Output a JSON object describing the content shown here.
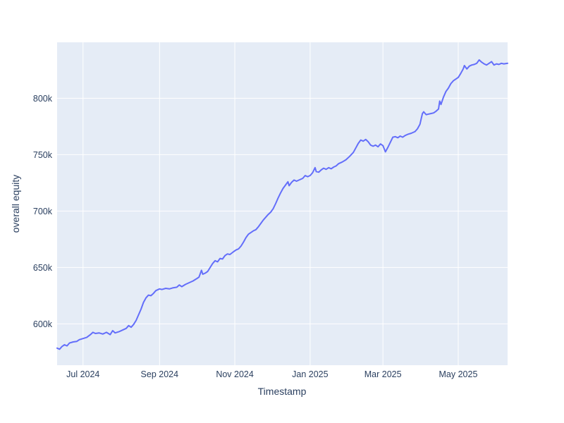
{
  "figure": {
    "background": "#ffffff"
  },
  "chart_data": {
    "type": "line",
    "title": "",
    "xlabel": "Timestamp",
    "ylabel": "overall equity",
    "units": "thousands (k)",
    "legend": "none",
    "grid": true,
    "colors": {
      "line": "#636efa",
      "plot_background": "#e5ecf6",
      "gridline": "#ffffff",
      "text": "#2a3f5f"
    },
    "x_range": [
      "2024-06-10",
      "2025-06-10"
    ],
    "y_range_k": [
      563.4,
      849.6
    ],
    "x_ticks": [
      {
        "label": "Jul 2024",
        "date": "2024-07-01"
      },
      {
        "label": "Sep 2024",
        "date": "2024-09-01"
      },
      {
        "label": "Nov 2024",
        "date": "2024-11-01"
      },
      {
        "label": "Jan 2025",
        "date": "2025-01-01"
      },
      {
        "label": "Mar 2025",
        "date": "2025-03-01"
      },
      {
        "label": "May 2025",
        "date": "2025-05-01"
      }
    ],
    "y_ticks": [
      {
        "label": "600k",
        "value_k": 600
      },
      {
        "label": "650k",
        "value_k": 650
      },
      {
        "label": "700k",
        "value_k": 700
      },
      {
        "label": "750k",
        "value_k": 750
      },
      {
        "label": "800k",
        "value_k": 800
      }
    ],
    "series": [
      {
        "name": "overall equity",
        "x": [
          "2024-06-10",
          "2024-06-12",
          "2024-06-14",
          "2024-06-16",
          "2024-06-18",
          "2024-06-20",
          "2024-06-23",
          "2024-06-26",
          "2024-06-28",
          "2024-07-01",
          "2024-07-04",
          "2024-07-07",
          "2024-07-09",
          "2024-07-11",
          "2024-07-14",
          "2024-07-17",
          "2024-07-20",
          "2024-07-23",
          "2024-07-25",
          "2024-07-27",
          "2024-07-30",
          "2024-08-02",
          "2024-08-05",
          "2024-08-07",
          "2024-08-09",
          "2024-08-11",
          "2024-08-13",
          "2024-08-15",
          "2024-08-17",
          "2024-08-19",
          "2024-08-21",
          "2024-08-23",
          "2024-08-25",
          "2024-08-27",
          "2024-08-29",
          "2024-09-01",
          "2024-09-03",
          "2024-09-06",
          "2024-09-09",
          "2024-09-12",
          "2024-09-15",
          "2024-09-17",
          "2024-09-19",
          "2024-09-22",
          "2024-09-25",
          "2024-09-28",
          "2024-10-01",
          "2024-10-03",
          "2024-10-05",
          "2024-10-06",
          "2024-10-08",
          "2024-10-10",
          "2024-10-12",
          "2024-10-14",
          "2024-10-16",
          "2024-10-18",
          "2024-10-20",
          "2024-10-22",
          "2024-10-24",
          "2024-10-26",
          "2024-10-28",
          "2024-10-31",
          "2024-11-02",
          "2024-11-04",
          "2024-11-06",
          "2024-11-08",
          "2024-11-10",
          "2024-11-12",
          "2024-11-14",
          "2024-11-16",
          "2024-11-18",
          "2024-11-20",
          "2024-11-22",
          "2024-11-24",
          "2024-11-26",
          "2024-11-28",
          "2024-11-30",
          "2024-12-02",
          "2024-12-04",
          "2024-12-06",
          "2024-12-08",
          "2024-12-10",
          "2024-12-12",
          "2024-12-14",
          "2024-12-15",
          "2024-12-17",
          "2024-12-19",
          "2024-12-21",
          "2024-12-23",
          "2024-12-26",
          "2024-12-28",
          "2024-12-30",
          "2025-01-01",
          "2025-01-03",
          "2025-01-05",
          "2025-01-06",
          "2025-01-08",
          "2025-01-10",
          "2025-01-12",
          "2025-01-14",
          "2025-01-16",
          "2025-01-18",
          "2025-01-20",
          "2025-01-22",
          "2025-01-24",
          "2025-01-27",
          "2025-01-30",
          "2025-02-02",
          "2025-02-05",
          "2025-02-07",
          "2025-02-09",
          "2025-02-11",
          "2025-02-13",
          "2025-02-15",
          "2025-02-17",
          "2025-02-19",
          "2025-02-21",
          "2025-02-23",
          "2025-02-25",
          "2025-02-27",
          "2025-03-01",
          "2025-03-03",
          "2025-03-05",
          "2025-03-07",
          "2025-03-09",
          "2025-03-11",
          "2025-03-13",
          "2025-03-15",
          "2025-03-17",
          "2025-03-19",
          "2025-03-21",
          "2025-03-24",
          "2025-03-27",
          "2025-03-29",
          "2025-03-31",
          "2025-04-01",
          "2025-04-02",
          "2025-04-03",
          "2025-04-05",
          "2025-04-07",
          "2025-04-09",
          "2025-04-11",
          "2025-04-13",
          "2025-04-15",
          "2025-04-16",
          "2025-04-17",
          "2025-04-19",
          "2025-04-21",
          "2025-04-23",
          "2025-04-25",
          "2025-04-27",
          "2025-04-29",
          "2025-05-01",
          "2025-05-03",
          "2025-05-05",
          "2025-05-06",
          "2025-05-08",
          "2025-05-10",
          "2025-05-12",
          "2025-05-14",
          "2025-05-16",
          "2025-05-18",
          "2025-05-20",
          "2025-05-22",
          "2025-05-24",
          "2025-05-26",
          "2025-05-28",
          "2025-05-30",
          "2025-06-01",
          "2025-06-03",
          "2025-06-05",
          "2025-06-07",
          "2025-06-10"
        ],
        "y_k": [
          578.5,
          577.5,
          580.0,
          581.5,
          580.5,
          583.0,
          584.0,
          584.5,
          586.0,
          587.0,
          588.0,
          590.5,
          592.5,
          591.5,
          592.0,
          591.0,
          592.5,
          590.5,
          594.0,
          592.0,
          593.0,
          594.5,
          596.0,
          598.5,
          597.0,
          599.5,
          603.0,
          608.0,
          613.0,
          619.0,
          623.0,
          625.5,
          625.0,
          627.0,
          629.5,
          631.0,
          630.5,
          631.5,
          631.0,
          632.0,
          632.5,
          634.5,
          633.0,
          635.0,
          636.5,
          638.0,
          640.0,
          641.5,
          647.5,
          644.0,
          645.0,
          646.5,
          650.0,
          653.5,
          656.0,
          655.0,
          658.0,
          657.5,
          660.5,
          662.0,
          661.5,
          664.0,
          665.5,
          666.5,
          669.0,
          672.5,
          676.5,
          679.5,
          681.0,
          682.5,
          683.5,
          686.0,
          689.0,
          692.0,
          694.5,
          697.0,
          699.0,
          702.0,
          706.5,
          711.5,
          716.0,
          720.0,
          723.0,
          726.0,
          722.5,
          725.5,
          727.5,
          726.5,
          727.5,
          729.0,
          731.5,
          730.5,
          731.5,
          734.0,
          738.5,
          735.0,
          734.5,
          736.5,
          738.0,
          737.0,
          738.5,
          737.5,
          739.0,
          740.0,
          742.0,
          743.5,
          745.5,
          748.5,
          752.0,
          756.0,
          760.0,
          763.0,
          762.0,
          763.5,
          761.5,
          758.5,
          757.5,
          758.5,
          757.0,
          759.5,
          758.0,
          752.5,
          756.5,
          761.0,
          765.5,
          766.0,
          765.0,
          766.5,
          765.5,
          767.0,
          768.0,
          769.0,
          770.5,
          773.0,
          777.0,
          782.0,
          786.5,
          788.0,
          785.5,
          786.0,
          786.5,
          787.0,
          788.5,
          790.5,
          797.5,
          794.5,
          801.0,
          806.0,
          809.0,
          813.0,
          815.5,
          817.0,
          818.5,
          822.0,
          826.0,
          829.0,
          826.0,
          828.5,
          829.5,
          830.0,
          831.0,
          834.0,
          832.0,
          830.5,
          829.5,
          831.0,
          832.5,
          829.5,
          830.5,
          830.0,
          831.0,
          830.5,
          831.0
        ]
      }
    ]
  }
}
